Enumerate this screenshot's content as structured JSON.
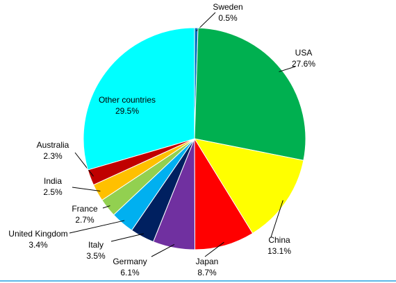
{
  "chart_data": {
    "type": "pie",
    "categories": [
      "Sweden",
      "USA",
      "China",
      "Japan",
      "Germany",
      "Italy",
      "United Kingdom",
      "France",
      "India",
      "Australia",
      "Other countries"
    ],
    "values": [
      0.5,
      27.6,
      13.1,
      8.7,
      6.1,
      3.5,
      3.4,
      2.7,
      2.5,
      2.3,
      29.5
    ],
    "value_labels": [
      "0.5%",
      "27.6%",
      "13.1%",
      "8.7%",
      "6.1%",
      "3.5%",
      "3.4%",
      "2.7%",
      "2.5%",
      "2.3%",
      "29.5%"
    ],
    "colors": [
      "#0070c0",
      "#00b050",
      "#ffff00",
      "#ff0000",
      "#7030a0",
      "#002060",
      "#00b0f0",
      "#92d050",
      "#ffc000",
      "#c00000",
      "#00ffff"
    ]
  }
}
